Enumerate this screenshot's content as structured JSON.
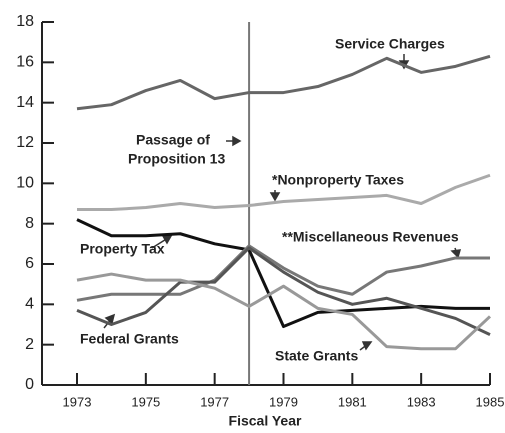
{
  "chart_data": {
    "type": "line",
    "x_label": "Fiscal Year",
    "annotation": [
      "Passage of",
      "Proposition 13"
    ],
    "vline": 1978,
    "x": [
      1973,
      1974,
      1975,
      1976,
      1977,
      1978,
      1979,
      1980,
      1981,
      1982,
      1983,
      1984,
      1985
    ],
    "series": [
      {
        "name": "Service Charges",
        "color": "#666666",
        "values": [
          13.7,
          13.9,
          14.6,
          15.1,
          14.2,
          14.5,
          14.5,
          14.8,
          15.4,
          16.2,
          15.5,
          15.8,
          16.3
        ]
      },
      {
        "name": "*Nonproperty Taxes",
        "color": "#aaaaaa",
        "values": [
          8.7,
          8.7,
          8.8,
          9.0,
          8.8,
          8.9,
          9.1,
          9.2,
          9.3,
          9.4,
          9.0,
          9.8,
          10.4
        ]
      },
      {
        "name": "Property Tax",
        "color": "#111111",
        "values": [
          8.2,
          7.4,
          7.4,
          7.5,
          7.0,
          6.7,
          2.9,
          3.6,
          3.7,
          3.8,
          3.9,
          3.8,
          3.8
        ]
      },
      {
        "name": "**Miscellaneous Revenues",
        "color": "#777777",
        "values": [
          4.2,
          4.5,
          4.5,
          4.5,
          5.2,
          6.9,
          5.8,
          4.9,
          4.5,
          5.6,
          5.9,
          6.3,
          6.3
        ]
      },
      {
        "name": "Federal Grants",
        "color": "#555555",
        "values": [
          3.7,
          3.0,
          3.6,
          5.1,
          5.1,
          6.8,
          5.6,
          4.6,
          4.0,
          4.3,
          3.8,
          3.3,
          2.5
        ]
      },
      {
        "name": "State Grants",
        "color": "#999999",
        "values": [
          5.2,
          5.5,
          5.2,
          5.2,
          4.8,
          3.9,
          4.9,
          3.8,
          3.5,
          1.9,
          1.8,
          1.8,
          3.4
        ]
      }
    ],
    "xlim": [
      1973,
      1985
    ],
    "xticks": [
      1973,
      1975,
      1977,
      1979,
      1981,
      1983,
      1985
    ],
    "ylim": [
      0,
      18
    ],
    "yticks": [
      0,
      2,
      4,
      6,
      8,
      10,
      12,
      14,
      16,
      18
    ]
  }
}
